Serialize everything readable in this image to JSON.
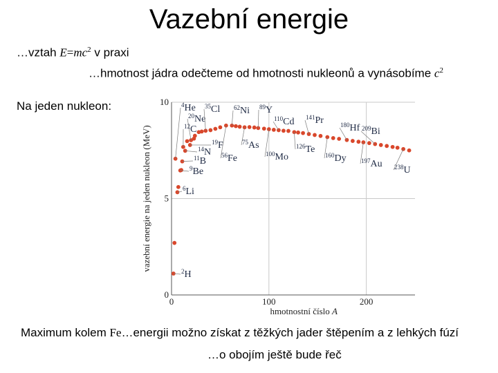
{
  "slide": {
    "title": "Vazební energie",
    "line1_prefix": "…vztah ",
    "line1_formula_left": "E",
    "line1_formula_eq": "=",
    "line1_formula_m": "m",
    "line1_formula_c": "c",
    "line1_formula_exp": "2",
    "line1_suffix": " v praxi",
    "line2_text": "…hmotnost jádra odečteme od hmotnosti nukleonů a vynásobíme ",
    "line2_c": "c",
    "line2_exp": "2",
    "line3": "Na jeden nukleon:",
    "line4_prefix": "Maximum kolem ",
    "line4_fe": "Fe",
    "line4_suffix": "…energii možno získat z těžkých jader štěpením a z lehkých fúzí",
    "line5": "…o obojím ještě bude řeč"
  },
  "chart_data": {
    "type": "scatter",
    "ylabel": "vazební energie na jeden nukleon (MeV)",
    "xlabel_prefix": "hmotnostní číslo ",
    "xlabel_var": "A",
    "xlim": [
      0,
      250
    ],
    "ylim": [
      0,
      10
    ],
    "x_ticks": [
      0,
      100,
      200
    ],
    "x_tick_labels": [
      "0",
      "100",
      "200"
    ],
    "y_ticks": [
      0,
      5,
      10
    ],
    "y_tick_labels": [
      "0",
      "5",
      "10"
    ],
    "grid": true,
    "point_color": "#d9472b",
    "x": [
      2,
      3,
      4,
      6,
      7,
      9,
      10,
      11,
      12,
      14,
      16,
      19,
      20,
      23,
      24,
      28,
      31,
      35,
      40,
      45,
      50,
      56,
      62,
      66,
      70,
      75,
      80,
      85,
      89,
      95,
      100,
      105,
      110,
      115,
      120,
      126,
      130,
      135,
      141,
      147,
      153,
      160,
      166,
      172,
      180,
      186,
      192,
      197,
      203,
      209,
      215,
      221,
      227,
      232,
      238,
      244
    ],
    "y": [
      1.11,
      2.7,
      7.07,
      5.33,
      5.6,
      6.46,
      6.48,
      6.93,
      7.68,
      7.48,
      7.98,
      7.78,
      8.03,
      8.11,
      8.26,
      8.45,
      8.48,
      8.52,
      8.55,
      8.62,
      8.7,
      8.79,
      8.79,
      8.76,
      8.73,
      8.7,
      8.71,
      8.69,
      8.66,
      8.63,
      8.6,
      8.57,
      8.55,
      8.52,
      8.51,
      8.45,
      8.43,
      8.4,
      8.35,
      8.3,
      8.25,
      8.19,
      8.14,
      8.1,
      8.04,
      7.99,
      7.95,
      7.92,
      7.88,
      7.83,
      7.78,
      7.73,
      7.68,
      7.64,
      7.57,
      7.5
    ],
    "annotations": [
      {
        "mass": "4",
        "symbol": "He",
        "x": 4,
        "y": 7.07
      },
      {
        "mass": "20",
        "symbol": "Ne",
        "x": 20,
        "y": 8.03
      },
      {
        "mass": "12",
        "symbol": "C",
        "x": 12,
        "y": 7.68
      },
      {
        "mass": "35",
        "symbol": "Cl",
        "x": 35,
        "y": 8.52
      },
      {
        "mass": "62",
        "symbol": "Ni",
        "x": 62,
        "y": 8.79
      },
      {
        "mass": "89",
        "symbol": "Y",
        "x": 89,
        "y": 8.66
      },
      {
        "mass": "110",
        "symbol": "Cd",
        "x": 110,
        "y": 8.55
      },
      {
        "mass": "141",
        "symbol": "Pr",
        "x": 141,
        "y": 8.35
      },
      {
        "mass": "180",
        "symbol": "Hf",
        "x": 180,
        "y": 8.04
      },
      {
        "mass": "209",
        "symbol": "Bi",
        "x": 209,
        "y": 7.83
      },
      {
        "mass": "19",
        "symbol": "F",
        "x": 19,
        "y": 7.78
      },
      {
        "mass": "14",
        "symbol": "N",
        "x": 14,
        "y": 7.48
      },
      {
        "mass": "11",
        "symbol": "B",
        "x": 11,
        "y": 6.93
      },
      {
        "mass": "9",
        "symbol": "Be",
        "x": 9,
        "y": 6.46
      },
      {
        "mass": "75",
        "symbol": "As",
        "x": 75,
        "y": 8.7
      },
      {
        "mass": "56",
        "symbol": "Fe",
        "x": 56,
        "y": 8.79
      },
      {
        "mass": "100",
        "symbol": "Mo",
        "x": 100,
        "y": 8.6
      },
      {
        "mass": "126",
        "symbol": "Te",
        "x": 126,
        "y": 8.45
      },
      {
        "mass": "160",
        "symbol": "Dy",
        "x": 160,
        "y": 8.19
      },
      {
        "mass": "197",
        "symbol": "Au",
        "x": 197,
        "y": 7.92
      },
      {
        "mass": "238",
        "symbol": "U",
        "x": 238,
        "y": 7.57
      },
      {
        "mass": "6",
        "symbol": "Li",
        "x": 6,
        "y": 5.33
      },
      {
        "mass": "2",
        "symbol": "H",
        "x": 2,
        "y": 1.11
      }
    ]
  }
}
